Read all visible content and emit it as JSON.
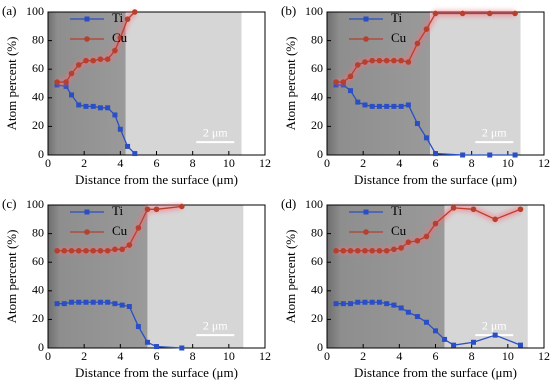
{
  "chart_data": [
    {
      "type": "line",
      "panel_label": "(a)",
      "xlabel": "Distance from the surface (μm)",
      "ylabel": "Atom percent (%)",
      "annotation": "2 μm",
      "xlim": [
        0,
        12
      ],
      "ylim": [
        0,
        100
      ],
      "xticks": [
        0,
        2,
        4,
        6,
        8,
        10,
        12
      ],
      "yticks": [
        0,
        20,
        40,
        60,
        80,
        100
      ],
      "legend": "upper left",
      "series": [
        {
          "name": "Ti",
          "color": "#2a4fc4",
          "x": [
            0.5,
            1.0,
            1.3,
            1.7,
            2.1,
            2.5,
            2.9,
            3.3,
            3.7,
            4.0,
            4.4,
            4.8
          ],
          "values": [
            49,
            48,
            42,
            35,
            34,
            34,
            33,
            33,
            28,
            18,
            6,
            1
          ]
        },
        {
          "name": "Cu",
          "color": "#b5402e",
          "x": [
            0.5,
            1.0,
            1.3,
            1.7,
            2.1,
            2.5,
            2.9,
            3.3,
            3.7,
            4.0,
            4.4,
            4.8
          ],
          "values": [
            51,
            51,
            57,
            63,
            66,
            66,
            67,
            67,
            73,
            82,
            95,
            100
          ]
        }
      ]
    },
    {
      "type": "line",
      "panel_label": "(b)",
      "xlabel": "Distance from the surface (μm)",
      "ylabel": "Atom percent (%)",
      "annotation": "2 μm",
      "xlim": [
        0,
        12
      ],
      "ylim": [
        0,
        100
      ],
      "xticks": [
        0,
        2,
        4,
        6,
        8,
        10,
        12
      ],
      "yticks": [
        0,
        20,
        40,
        60,
        80,
        100
      ],
      "legend": "upper left",
      "series": [
        {
          "name": "Ti",
          "color": "#2a4fc4",
          "x": [
            0.5,
            0.9,
            1.3,
            1.7,
            2.1,
            2.5,
            2.9,
            3.3,
            3.7,
            4.1,
            4.5,
            5.0,
            5.5,
            6.0,
            7.5,
            9.0,
            10.4
          ],
          "values": [
            49,
            49,
            45,
            37,
            35,
            34,
            34,
            34,
            34,
            34,
            35,
            22,
            12,
            1,
            0,
            0,
            0
          ]
        },
        {
          "name": "Cu",
          "color": "#b5402e",
          "x": [
            0.5,
            0.9,
            1.3,
            1.7,
            2.1,
            2.5,
            2.9,
            3.3,
            3.7,
            4.1,
            4.5,
            5.0,
            5.5,
            6.0,
            7.5,
            9.0,
            10.4
          ],
          "values": [
            51,
            51,
            55,
            63,
            65,
            66,
            66,
            66,
            66,
            66,
            65,
            78,
            88,
            99,
            99,
            99,
            99
          ]
        }
      ]
    },
    {
      "type": "line",
      "panel_label": "(c)",
      "xlabel": "Distance from the surface (μm)",
      "ylabel": "Atom percent (%)",
      "annotation": "2 μm",
      "xlim": [
        0,
        12
      ],
      "ylim": [
        0,
        100
      ],
      "xticks": [
        0,
        2,
        4,
        6,
        8,
        10,
        12
      ],
      "yticks": [
        0,
        20,
        40,
        60,
        80,
        100
      ],
      "legend": "upper left",
      "series": [
        {
          "name": "Ti",
          "color": "#2a4fc4",
          "x": [
            0.5,
            0.9,
            1.3,
            1.7,
            2.1,
            2.5,
            2.9,
            3.3,
            3.7,
            4.1,
            4.5,
            5.0,
            5.5,
            6.0,
            7.4
          ],
          "values": [
            31,
            31,
            32,
            32,
            32,
            32,
            32,
            32,
            31,
            30,
            29,
            15,
            4,
            1,
            0
          ]
        },
        {
          "name": "Cu",
          "color": "#b5402e",
          "x": [
            0.5,
            0.9,
            1.3,
            1.7,
            2.1,
            2.5,
            2.9,
            3.3,
            3.7,
            4.1,
            4.5,
            5.0,
            5.5,
            6.0,
            7.4
          ],
          "values": [
            68,
            68,
            68,
            68,
            68,
            68,
            68,
            68,
            69,
            69,
            72,
            84,
            97,
            97,
            99
          ]
        }
      ]
    },
    {
      "type": "line",
      "panel_label": "(d)",
      "xlabel": "Distance from the surface (μm)",
      "ylabel": "Atom percent (%)",
      "annotation": "2 μm",
      "xlim": [
        0,
        12
      ],
      "ylim": [
        0,
        100
      ],
      "xticks": [
        0,
        2,
        4,
        6,
        8,
        10,
        12
      ],
      "yticks": [
        0,
        20,
        40,
        60,
        80,
        100
      ],
      "legend": "upper left",
      "series": [
        {
          "name": "Ti",
          "color": "#2a4fc4",
          "x": [
            0.5,
            0.9,
            1.3,
            1.7,
            2.1,
            2.5,
            2.9,
            3.3,
            3.7,
            4.1,
            4.5,
            5.0,
            5.5,
            6.0,
            6.5,
            7.0,
            8.1,
            9.3,
            10.7
          ],
          "values": [
            31,
            31,
            31,
            32,
            32,
            32,
            32,
            31,
            30,
            28,
            25,
            22,
            18,
            12,
            6,
            2,
            4,
            9,
            2
          ]
        },
        {
          "name": "Cu",
          "color": "#b5402e",
          "x": [
            0.5,
            0.9,
            1.3,
            1.7,
            2.1,
            2.5,
            2.9,
            3.3,
            3.7,
            4.1,
            4.5,
            5.0,
            5.5,
            6.0,
            7.0,
            8.1,
            9.3,
            10.7
          ],
          "values": [
            68,
            68,
            68,
            68,
            68,
            68,
            68,
            68,
            69,
            70,
            74,
            75,
            78,
            87,
            98,
            97,
            90,
            97
          ]
        }
      ]
    }
  ]
}
